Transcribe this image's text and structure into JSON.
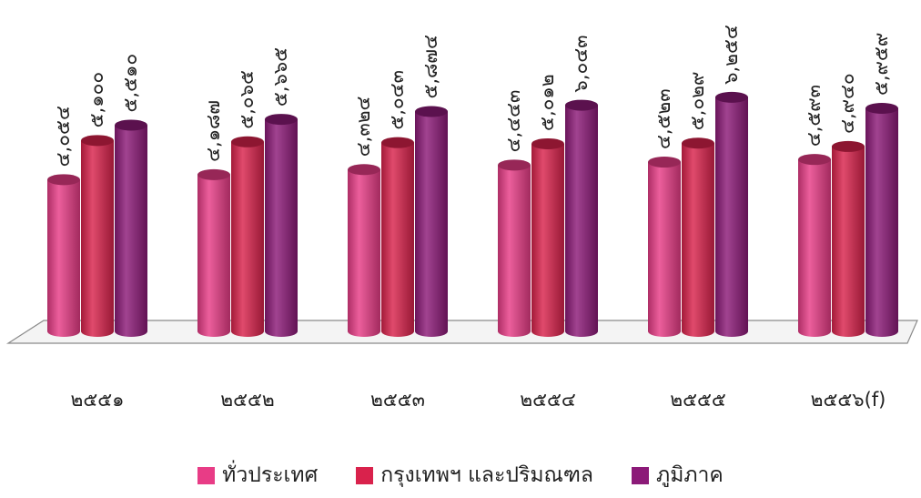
{
  "chart_data": {
    "type": "bar",
    "categories": [
      "๒๕๕๑",
      "๒๕๕๒",
      "๒๕๕๓",
      "๒๕๕๔",
      "๒๕๕๕",
      "๒๕๕๖(f)"
    ],
    "series": [
      {
        "name": "ทั่วประเทศ",
        "color": "#e83c86",
        "values": [
          4054,
          4187,
          4324,
          4443,
          4523,
          4593
        ],
        "labels": [
          "๔,๐๕๔",
          "๔,๑๘๗",
          "๔,๓๒๔",
          "๔,๔๔๓",
          "๔,๕๒๓",
          "๔,๕๙๓"
        ]
      },
      {
        "name": "กรุงเทพฯ และปริมณฑล",
        "color": "#d9224c",
        "values": [
          5100,
          5065,
          5043,
          5012,
          5029,
          4940
        ],
        "labels": [
          "๕,๑๐๐",
          "๕,๐๖๕",
          "๕,๐๔๓",
          "๕,๐๑๒",
          "๕,๐๒๙",
          "๔,๙๔๐"
        ]
      },
      {
        "name": "ภูมิภาค",
        "color": "#8c1a78",
        "values": [
          5510,
          5665,
          5874,
          6043,
          6254,
          5959
        ],
        "labels": [
          "๕,๕๑๐",
          "๕,๖๖๕",
          "๕,๘๗๔",
          "๖,๐๔๓",
          "๖,๒๕๔",
          "๕,๙๕๙"
        ]
      }
    ],
    "legend_position": "bottom",
    "grid": false
  }
}
